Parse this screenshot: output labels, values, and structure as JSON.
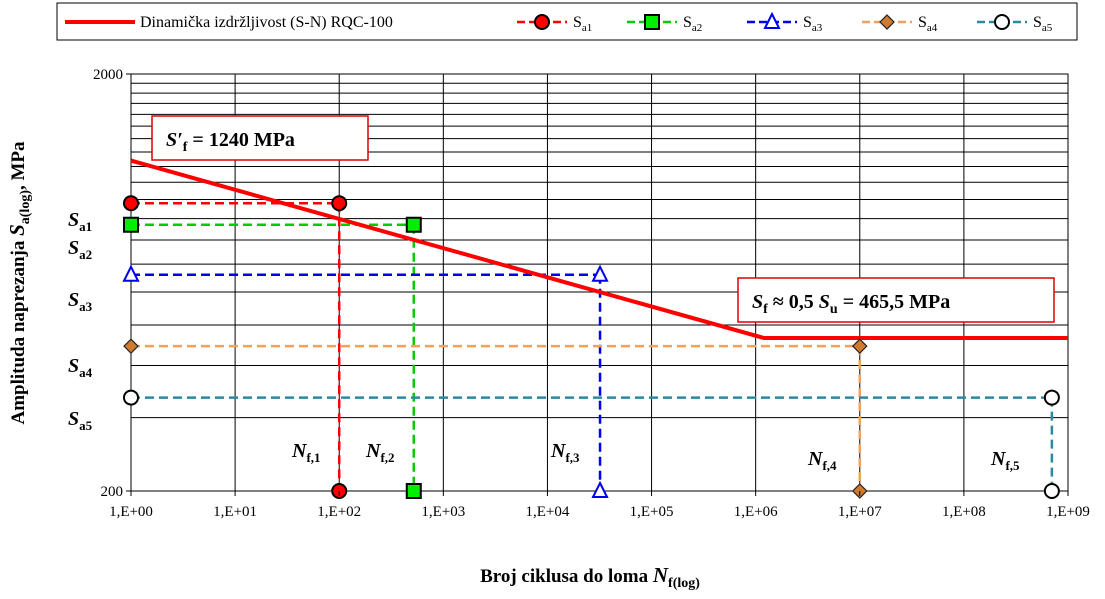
{
  "chart_data": {
    "type": "line",
    "x_scale": "log",
    "y_scale": "log",
    "xlim": [
      1,
      1000000000
    ],
    "ylim": [
      200,
      2000
    ],
    "x_ticks": [
      "1,E+00",
      "1,E+01",
      "1,E+02",
      "1,E+03",
      "1,E+04",
      "1,E+05",
      "1,E+06",
      "1,E+07",
      "1,E+08",
      "1,E+09"
    ],
    "y_ticks": [
      "200",
      "2000"
    ],
    "xlabel": {
      "main": "Broj ciklusa do loma ",
      "sym": "N",
      "sub": "f(log)"
    },
    "ylabel": {
      "main": "Amplituda naprezanja ",
      "sym": "S",
      "sub": "a(log)",
      "tail": ", MPa"
    },
    "grid": true,
    "legend_position": "top",
    "curve": {
      "name": "Dinamička izdržljivost (S-N) RQC-100",
      "color": "#ff0000",
      "points": [
        [
          1,
          1240
        ],
        [
          1200000,
          465.5
        ],
        [
          1000000000,
          465.5
        ]
      ]
    },
    "series": [
      {
        "name": "Sa1",
        "name_main": "S",
        "name_sub": "a1",
        "color": "#ff0000",
        "marker": "circle",
        "marker_fill": "#ff0000",
        "sa": 980,
        "nf": 100
      },
      {
        "name": "Sa2",
        "name_main": "S",
        "name_sub": "a2",
        "color": "#00cc00",
        "marker": "square",
        "marker_fill": "#00ee00",
        "sa": 870,
        "nf": 520
      },
      {
        "name": "Sa3",
        "name_main": "S",
        "name_sub": "a3",
        "color": "#0000ee",
        "marker": "triangle",
        "marker_fill": "#ffffff",
        "sa": 660,
        "nf": 32000
      },
      {
        "name": "Sa4",
        "name_main": "S",
        "name_sub": "a4",
        "color": "#f5a05a",
        "marker": "diamond",
        "marker_fill": "#d07a30",
        "sa": 445,
        "nf": 10000000
      },
      {
        "name": "Sa5",
        "name_main": "S",
        "name_sub": "a5",
        "color": "#2a8aa0",
        "marker": "circle",
        "marker_fill": "#ffffff",
        "sa": 335,
        "nf": 700000000
      }
    ],
    "annotations": {
      "sf_prime": {
        "sym": "S′",
        "sub": "f",
        "text": " = 1240 MPa"
      },
      "sf_limit": {
        "sym": "S",
        "sub": "f",
        "mid": " ≈ 0,5 ",
        "sym2": "S",
        "sub2": "u",
        "tail": " = 465,5 MPa"
      },
      "sa_labels": [
        {
          "main": "S",
          "sub": "a1"
        },
        {
          "main": "S",
          "sub": "a2"
        },
        {
          "main": "S",
          "sub": "a3"
        },
        {
          "main": "S",
          "sub": "a4"
        },
        {
          "main": "S",
          "sub": "a5"
        }
      ],
      "nf_labels": [
        {
          "main": "N",
          "sub": "f,1"
        },
        {
          "main": "N",
          "sub": "f,2"
        },
        {
          "main": "N",
          "sub": "f,3"
        },
        {
          "main": "N",
          "sub": "f,4"
        },
        {
          "main": "N",
          "sub": "f,5"
        }
      ]
    }
  }
}
